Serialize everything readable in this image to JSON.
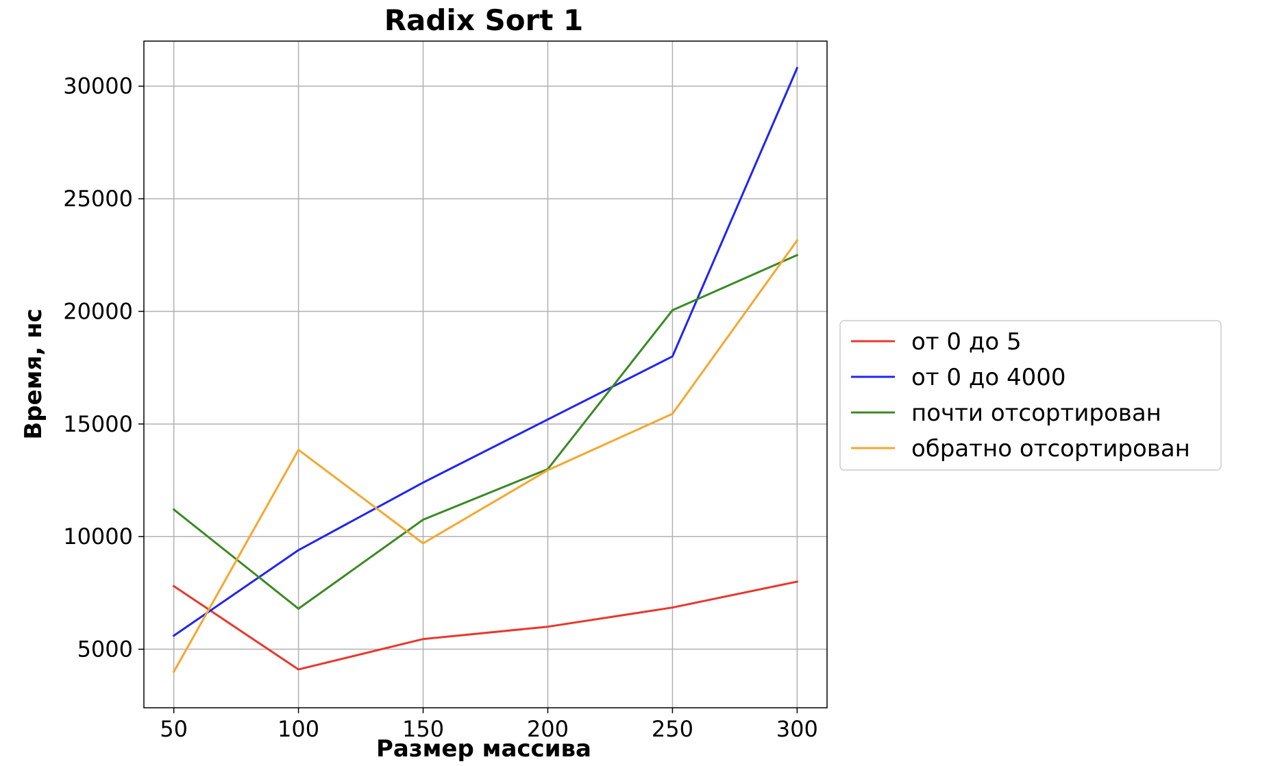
{
  "chart_data": {
    "type": "line",
    "title": "Radix Sort 1",
    "xlabel": "Размер массива",
    "ylabel": "Время, нс",
    "x": [
      50,
      100,
      150,
      200,
      250,
      300
    ],
    "xticks": [
      50,
      100,
      150,
      200,
      250,
      300
    ],
    "xtick_labels": [
      "50",
      "100",
      "150",
      "200",
      "250",
      "300"
    ],
    "yticks": [
      5000,
      10000,
      15000,
      20000,
      25000,
      30000
    ],
    "ytick_labels": [
      "5000",
      "10000",
      "15000",
      "20000",
      "25000",
      "30000"
    ],
    "xlim": [
      38,
      312
    ],
    "ylim": [
      2400,
      32000
    ],
    "grid": true,
    "legend_position": "center-right, outside plot",
    "series": [
      {
        "name": "от 0 до 5",
        "color": "#e8382b",
        "values": [
          7800,
          4100,
          5450,
          6000,
          6850,
          8000
        ]
      },
      {
        "name": "от 0 до 4000",
        "color": "#1f24f5",
        "values": [
          5600,
          9400,
          12400,
          15200,
          18000,
          30800
        ]
      },
      {
        "name": "почти отсортирован",
        "color": "#3a8a23",
        "values": [
          11200,
          6800,
          10750,
          13000,
          20050,
          22500
        ]
      },
      {
        "name": "обратно отсортирован",
        "color": "#f5a72e",
        "values": [
          4000,
          13850,
          9700,
          12950,
          15450,
          23150
        ]
      }
    ]
  }
}
